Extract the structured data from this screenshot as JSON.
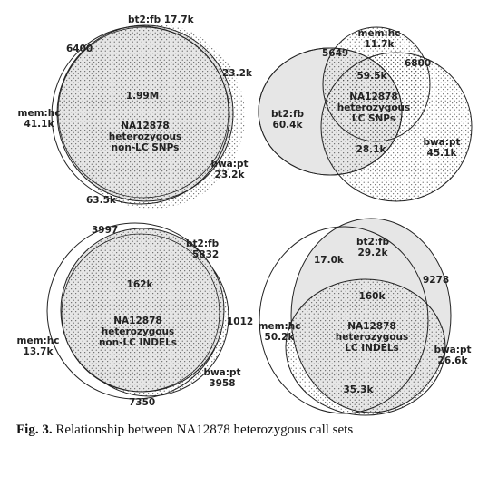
{
  "panels": {
    "top_left": {
      "bt2fb": "bt2:fb 17.7k",
      "n6400": "6400",
      "n23_2k_top": "23.2k",
      "center_value": "1.99M",
      "center_l1": "NA12878",
      "center_l2": "heterozygous",
      "center_l3": "non-LC SNPs",
      "memhc_l1": "mem:hc",
      "memhc_l2": "41.1k",
      "bwapt_l1": "bwa:pt",
      "bwapt_l2": "23.2k",
      "n63_5k": "63.5k"
    },
    "top_right": {
      "memhc_l1": "mem:hc",
      "memhc_l2": "11.7k",
      "n5649": "5649",
      "n6800": "6800",
      "n59_5k": "59.5k",
      "bt2fb_l1": "bt2:fb",
      "bt2fb_l2": "60.4k",
      "center_l1": "NA12878",
      "center_l2": "heterozygous",
      "center_l3": "LC SNPs",
      "n28_1k": "28.1k",
      "bwapt_l1": "bwa:pt",
      "bwapt_l2": "45.1k"
    },
    "bottom_left": {
      "n3997": "3997",
      "bt2fb": "bt2:fb",
      "n5832": "5832",
      "center_value": "162k",
      "center_l1": "NA12878",
      "center_l2": "heterozygous",
      "center_l3": "non-LC INDELs",
      "n1012": "1012",
      "memhc_l1": "mem:hc",
      "memhc_l2": "13.7k",
      "bwapt_l1": "bwa:pt",
      "bwapt_l2": "3958",
      "n7350": "7350"
    },
    "bottom_right": {
      "bt2fb_l1": "bt2:fb",
      "bt2fb_l2": "29.2k",
      "n17_0k": "17.0k",
      "n9278": "9278",
      "n160k": "160k",
      "memhc_l1": "mem:hc",
      "memhc_l2": "50.2k",
      "center_l1": "NA12878",
      "center_l2": "heterozygous",
      "center_l3": "LC INDELs",
      "bwapt_l1": "bwa:pt",
      "bwapt_l2": "26.6k",
      "n35_3k": "35.3k"
    }
  },
  "caption": {
    "label": "Fig. 3.",
    "text": "Relationship between NA12878 heterozygous call sets"
  }
}
